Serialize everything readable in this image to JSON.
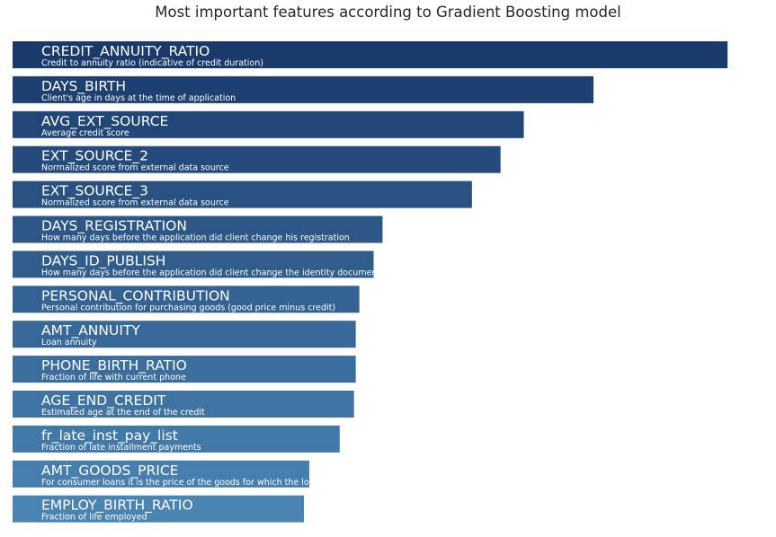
{
  "chart_data": {
    "type": "bar",
    "orientation": "horizontal",
    "title": "Most important features according to Gradient Boosting model",
    "xlabel": "",
    "ylabel": "",
    "grid": false,
    "legend": "none",
    "axes_visible": false,
    "colormap": "Blues",
    "color_dark": "#1a3a6c",
    "color_light": "#4a85b2",
    "label_color": "#ffffff",
    "xlim": [
      0,
      0.041
    ],
    "categories": [
      "CREDIT_ANNUITY_RATIO",
      "DAYS_BIRTH",
      "AVG_EXT_SOURCE",
      "EXT_SOURCE_2",
      "EXT_SOURCE_3",
      "DAYS_REGISTRATION",
      "DAYS_ID_PUBLISH",
      "PERSONAL_CONTRIBUTION",
      "AMT_ANNUITY",
      "PHONE_BIRTH_RATIO",
      "AGE_END_CREDIT",
      "fr_late_inst_pay_list",
      "AMT_GOODS_PRICE",
      "EMPLOY_BIRTH_RATIO"
    ],
    "descriptions": [
      "Credit to annuity ratio (indicative of credit duration)",
      "Client's age in days at the time of application",
      "Average credit score",
      "Normalized score from external data source",
      "Normalized score from external data source",
      "How many days before the application did client change his registration",
      "How many days before the application did client change the identity document with which he applied for the loan",
      "Personal contribution for purchasing goods (good price minus credit)",
      "Loan annuity",
      "Fraction of life with current phone",
      "Estimated age at the end of the credit",
      "Fraction of late installment payments",
      "For consumer loans it is the price of the goods for which the loan is given",
      "Fraction of life employed"
    ],
    "values": [
      0.04,
      0.0325,
      0.0286,
      0.0273,
      0.0257,
      0.0207,
      0.0202,
      0.0194,
      0.0192,
      0.0192,
      0.0191,
      0.0183,
      0.0166,
      0.0163
    ]
  }
}
